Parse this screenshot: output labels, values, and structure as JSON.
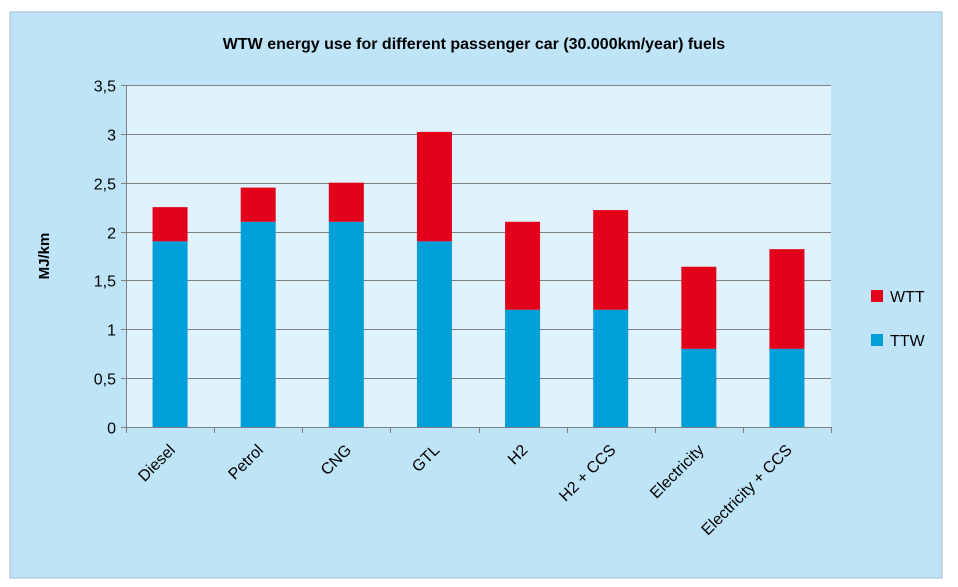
{
  "chart_data": {
    "type": "bar",
    "stacked": true,
    "title": "WTW energy use for different  passenger car (30.000km/year) fuels",
    "ylabel": "MJ/km",
    "xlabel": "",
    "categories": [
      "Diesel",
      "Petrol",
      "CNG",
      "GTL",
      "H2",
      "H2 + CCS",
      "Electricity",
      "Electricity + CCS"
    ],
    "series": [
      {
        "name": "TTW",
        "color": "#009FD9",
        "values": [
          1.9,
          2.1,
          2.1,
          1.9,
          1.2,
          1.2,
          0.8,
          0.8
        ]
      },
      {
        "name": "WTT",
        "color": "#E2001A",
        "values": [
          0.35,
          0.35,
          0.4,
          1.12,
          0.9,
          1.02,
          0.84,
          1.02
        ]
      }
    ],
    "ylim": [
      0,
      3.5
    ],
    "yticks": [
      "0",
      "0,5",
      "1",
      "1,5",
      "2",
      "2,5",
      "3",
      "3,5"
    ],
    "grid": true,
    "legend": {
      "position": "right",
      "order": [
        "WTT",
        "TTW"
      ]
    },
    "colors": {
      "outer_background": "#BFE4F8",
      "plot_background": "#E0F3FC",
      "gridline": "#7F7F7F",
      "axis": "#7F7F7F"
    }
  }
}
